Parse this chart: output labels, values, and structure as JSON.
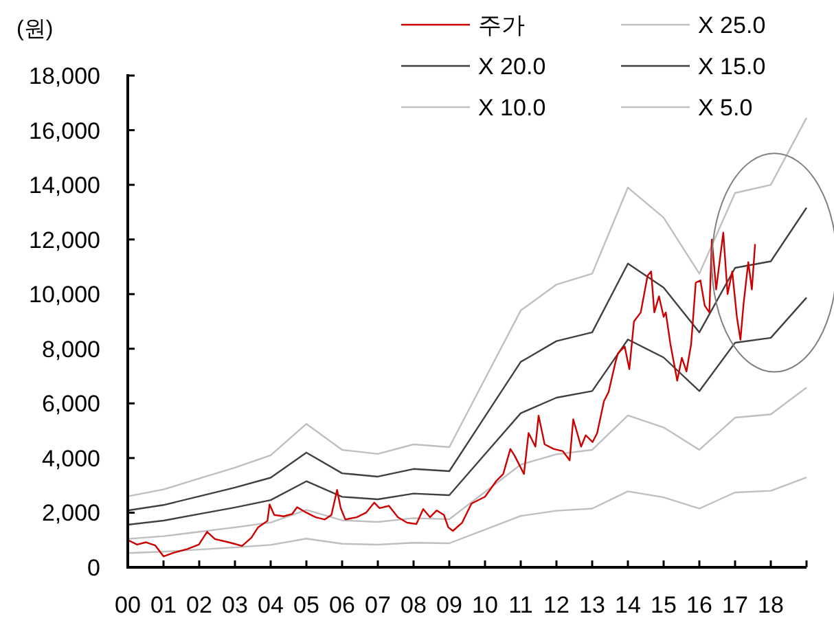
{
  "chart_data": {
    "type": "line",
    "ylabel": "(원)",
    "xlim": [
      0,
      19
    ],
    "ylim": [
      0,
      18000
    ],
    "xticks": [
      {
        "value": 0,
        "label": "00"
      },
      {
        "value": 1,
        "label": "01"
      },
      {
        "value": 2,
        "label": "02"
      },
      {
        "value": 3,
        "label": "03"
      },
      {
        "value": 4,
        "label": "04"
      },
      {
        "value": 5,
        "label": "05"
      },
      {
        "value": 6,
        "label": "06"
      },
      {
        "value": 7,
        "label": "07"
      },
      {
        "value": 8,
        "label": "08"
      },
      {
        "value": 9,
        "label": "09"
      },
      {
        "value": 10,
        "label": "10"
      },
      {
        "value": 11,
        "label": "11"
      },
      {
        "value": 12,
        "label": "12"
      },
      {
        "value": 13,
        "label": "13"
      },
      {
        "value": 14,
        "label": "14"
      },
      {
        "value": 15,
        "label": "15"
      },
      {
        "value": 16,
        "label": "16"
      },
      {
        "value": 17,
        "label": "17"
      },
      {
        "value": 18,
        "label": "18"
      },
      {
        "value": 19,
        "label": null
      }
    ],
    "yticks": [
      {
        "value": 0,
        "label": "0"
      },
      {
        "value": 2000,
        "label": "2,000"
      },
      {
        "value": 4000,
        "label": "4,000"
      },
      {
        "value": 6000,
        "label": "6,000"
      },
      {
        "value": 8000,
        "label": "8,000"
      },
      {
        "value": 10000,
        "label": "10,000"
      },
      {
        "value": 12000,
        "label": "12,000"
      },
      {
        "value": 14000,
        "label": "14,000"
      },
      {
        "value": 16000,
        "label": "16,000"
      },
      {
        "value": 18000,
        "label": "18,000"
      }
    ],
    "grid": false,
    "legend": "top right",
    "marker": "none",
    "line_style": "solid",
    "series": [
      {
        "name": "주가",
        "color": "#cc0000",
        "x": [
          0,
          0.26,
          0.51,
          0.77,
          1.0,
          1.28,
          1.67,
          1.99,
          2.22,
          2.44,
          2.82,
          3.2,
          3.46,
          3.65,
          3.91,
          3.97,
          4.1,
          4.36,
          4.6,
          4.74,
          5.0,
          5.26,
          5.51,
          5.7,
          5.86,
          5.96,
          6.09,
          6.41,
          6.67,
          6.9,
          7.05,
          7.31,
          7.56,
          7.82,
          8.08,
          8.27,
          8.46,
          8.65,
          8.85,
          8.97,
          9.1,
          9.36,
          9.62,
          10.0,
          10.32,
          10.51,
          10.71,
          10.83,
          11.09,
          11.22,
          11.41,
          11.5,
          11.67,
          11.92,
          12.18,
          12.37,
          12.47,
          12.69,
          12.82,
          13.01,
          13.14,
          13.33,
          13.46,
          13.65,
          13.72,
          13.91,
          14.04,
          14.17,
          14.36,
          14.55,
          14.65,
          14.74,
          14.87,
          15.0,
          15.06,
          15.19,
          15.38,
          15.51,
          15.64,
          15.77,
          15.9,
          16.03,
          16.15,
          16.28,
          16.35,
          16.47,
          16.67,
          16.79,
          16.92,
          17.05,
          17.15,
          17.24,
          17.37,
          17.47,
          17.56
        ],
        "values": [
          1000,
          833,
          917,
          800,
          400,
          533,
          667,
          833,
          1300,
          1033,
          917,
          783,
          1083,
          1467,
          1700,
          2300,
          1917,
          1867,
          1950,
          2200,
          2000,
          1833,
          1750,
          1917,
          2833,
          2167,
          1750,
          1833,
          2000,
          2367,
          2167,
          2250,
          1833,
          1633,
          1583,
          2133,
          1833,
          2083,
          1917,
          1467,
          1333,
          1633,
          2333,
          2583,
          3167,
          3417,
          4333,
          4083,
          3417,
          4917,
          4417,
          5550,
          4500,
          4333,
          4250,
          3917,
          5417,
          4417,
          4833,
          4583,
          4917,
          6083,
          6417,
          7500,
          7830,
          8080,
          7250,
          9000,
          9330,
          10670,
          10830,
          9330,
          9920,
          9170,
          9330,
          8170,
          6830,
          7670,
          7170,
          8170,
          10420,
          10500,
          9580,
          9330,
          12000,
          10170,
          12250,
          10000,
          10830,
          9170,
          8330,
          9670,
          11170,
          10170,
          11830
        ]
      },
      {
        "name": "X 25.0",
        "color": "#bfbfbf",
        "x": [
          0,
          1,
          2,
          3,
          4,
          5,
          6,
          7,
          8,
          9,
          10,
          11,
          12,
          13,
          14,
          15,
          16,
          17,
          18,
          19
        ],
        "values": [
          2600,
          2850,
          3250,
          3650,
          4100,
          5250,
          4300,
          4150,
          4500,
          4400,
          6900,
          9400,
          10350,
          10750,
          13900,
          12800,
          10750,
          13700,
          14000,
          16450
        ]
      },
      {
        "name": "X 20.0",
        "color": "#404040",
        "x": [
          0,
          1,
          2,
          3,
          4,
          5,
          6,
          7,
          8,
          9,
          10,
          11,
          12,
          13,
          14,
          15,
          16,
          17,
          18,
          19
        ],
        "values": [
          2080,
          2280,
          2600,
          2920,
          3280,
          4200,
          3440,
          3320,
          3600,
          3520,
          5520,
          7520,
          8280,
          8600,
          11120,
          10240,
          8600,
          10960,
          11200,
          13160
        ]
      },
      {
        "name": "X 15.0",
        "color": "#404040",
        "x": [
          0,
          1,
          2,
          3,
          4,
          5,
          6,
          7,
          8,
          9,
          10,
          11,
          12,
          13,
          14,
          15,
          16,
          17,
          18,
          19
        ],
        "values": [
          1560,
          1710,
          1950,
          2190,
          2460,
          3150,
          2580,
          2490,
          2700,
          2640,
          4140,
          5640,
          6210,
          6450,
          8340,
          7680,
          6450,
          8220,
          8400,
          9870
        ]
      },
      {
        "name": "X 10.0",
        "color": "#bfbfbf",
        "x": [
          0,
          1,
          2,
          3,
          4,
          5,
          6,
          7,
          8,
          9,
          10,
          11,
          12,
          13,
          14,
          15,
          16,
          17,
          18,
          19
        ],
        "values": [
          1040,
          1140,
          1300,
          1460,
          1640,
          2100,
          1720,
          1660,
          1800,
          1760,
          2760,
          3760,
          4140,
          4300,
          5560,
          5120,
          4300,
          5480,
          5600,
          6580
        ]
      },
      {
        "name": "X 5.0",
        "color": "#bfbfbf",
        "x": [
          0,
          1,
          2,
          3,
          4,
          5,
          6,
          7,
          8,
          9,
          10,
          11,
          12,
          13,
          14,
          15,
          16,
          17,
          18,
          19
        ],
        "values": [
          520,
          570,
          650,
          730,
          820,
          1050,
          860,
          830,
          900,
          880,
          1380,
          1880,
          2070,
          2150,
          2780,
          2560,
          2150,
          2740,
          2800,
          3290
        ]
      }
    ]
  }
}
